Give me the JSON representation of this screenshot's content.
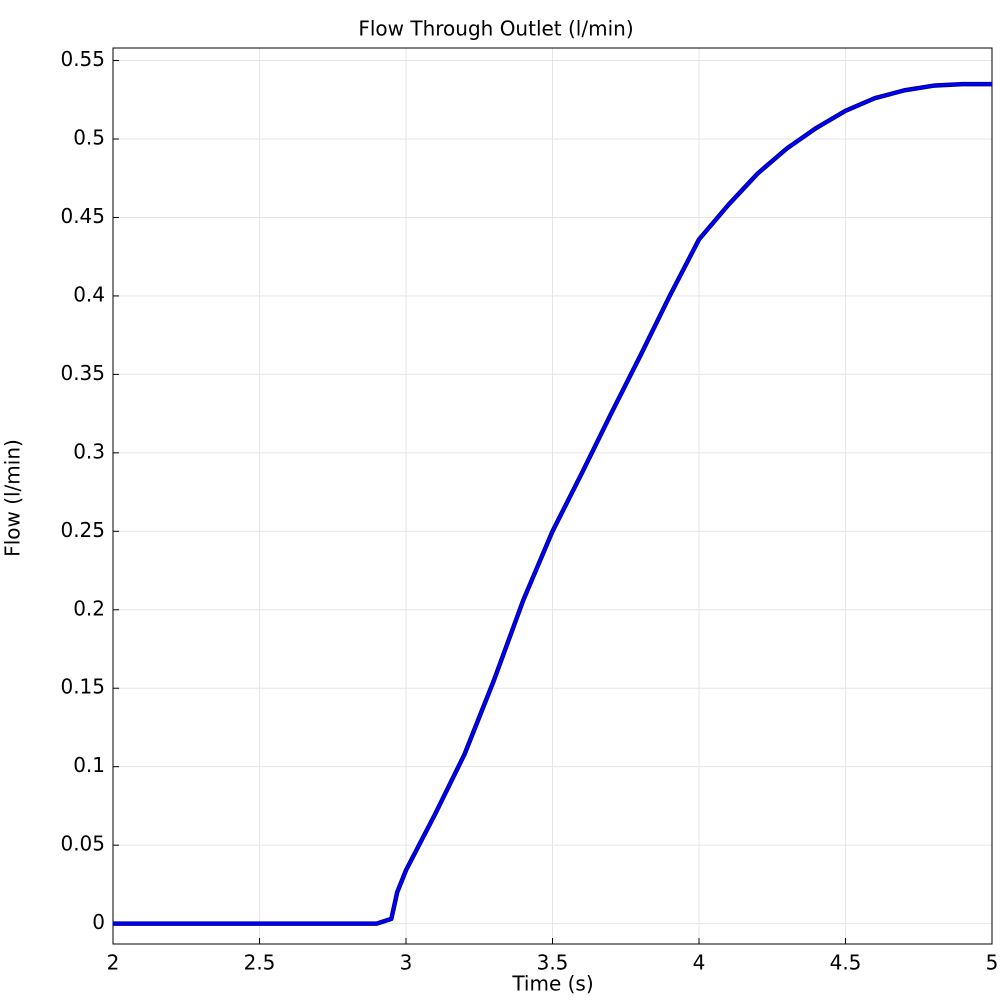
{
  "chart_data": {
    "type": "line",
    "title": "Flow Through Outlet (l/min)",
    "xlabel": "Time (s)",
    "ylabel": "Flow (l/min)",
    "x": [
      2,
      2.5,
      2.9,
      2.95,
      2.97,
      3.0,
      3.1,
      3.2,
      3.3,
      3.4,
      3.5,
      3.6,
      3.7,
      3.8,
      3.9,
      4.0,
      4.1,
      4.2,
      4.3,
      4.4,
      4.5,
      4.6,
      4.7,
      4.8,
      4.9,
      5.0
    ],
    "series": [
      {
        "name": "Flow",
        "color": "#0000ff",
        "values": [
          0,
          0,
          0,
          0.003,
          0.02,
          0.034,
          0.07,
          0.108,
          0.155,
          0.206,
          0.25,
          0.287,
          0.325,
          0.362,
          0.4,
          0.436,
          0.458,
          0.478,
          0.494,
          0.507,
          0.518,
          0.526,
          0.531,
          0.534,
          0.535,
          0.535
        ]
      }
    ],
    "xlim": [
      2,
      5
    ],
    "xticks": [
      2,
      2.5,
      3,
      3.5,
      4,
      4.5,
      5
    ],
    "ylim": [
      -0.013,
      0.558
    ],
    "yticks": [
      0,
      0.05,
      0.1,
      0.15,
      0.2,
      0.25,
      0.3,
      0.35,
      0.4,
      0.45,
      0.5,
      0.55
    ],
    "grid": true
  }
}
